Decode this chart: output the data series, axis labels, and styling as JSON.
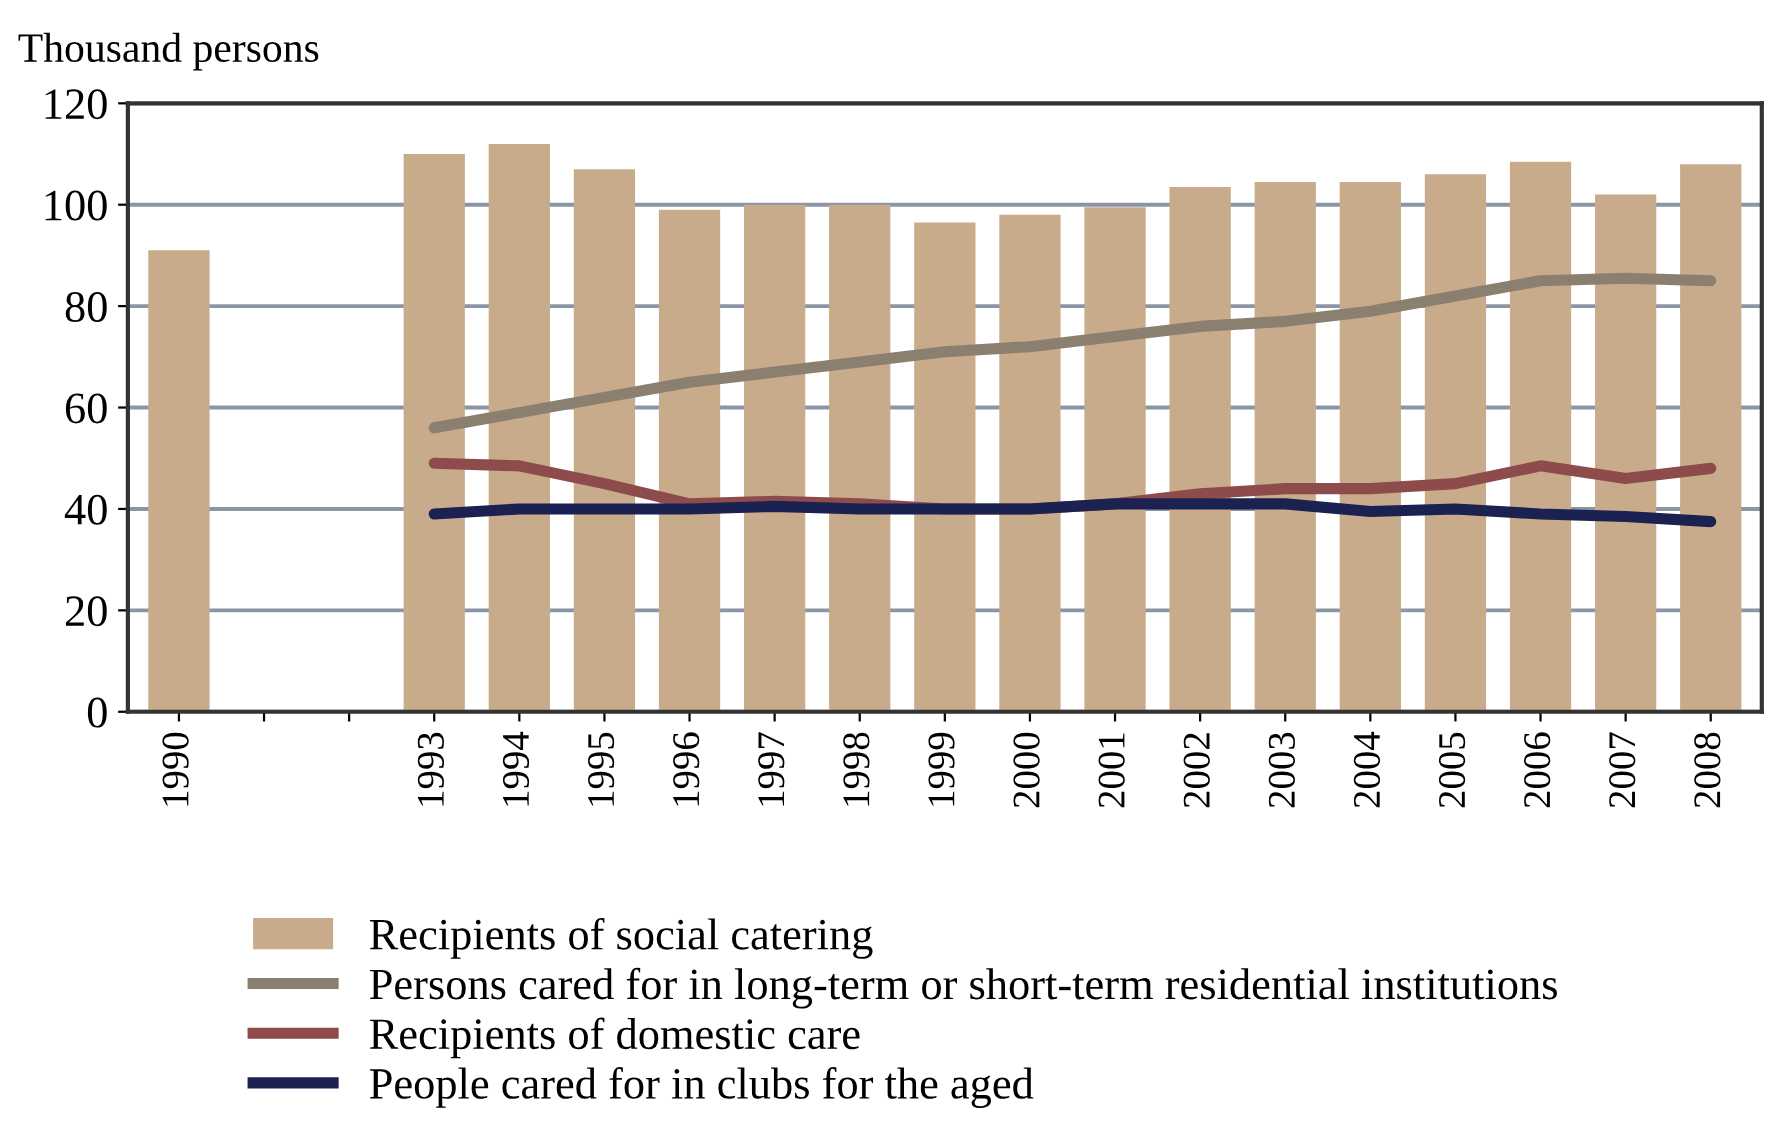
{
  "chart_data": {
    "type": "bar",
    "ylabel": "Thousand persons",
    "categories": [
      "1990",
      null,
      null,
      "1993",
      "1994",
      "1995",
      "1996",
      "1997",
      "1998",
      "1999",
      "2000",
      "2001",
      "2002",
      "2003",
      "2004",
      "2005",
      "2006",
      "2007",
      "2008"
    ],
    "series": [
      {
        "name": "Recipients of social catering",
        "color": "#c8ab8b",
        "values": [
          91,
          null,
          null,
          110,
          112,
          107,
          99,
          100,
          100,
          96.5,
          98,
          99.5,
          103.5,
          104.5,
          104.5,
          106,
          108.5,
          102,
          108
        ]
      },
      {
        "name": "Persons cared for in long-term or short-term residential institutions",
        "type": "line",
        "color": "#8b7f70",
        "values": [
          null,
          null,
          null,
          56,
          59,
          62,
          65,
          67,
          69,
          71,
          72,
          74,
          76,
          77,
          79,
          82,
          85,
          85.5,
          85
        ]
      },
      {
        "name": "Recipients of domestic care",
        "type": "line",
        "color": "#8e4b4b",
        "values": [
          null,
          null,
          null,
          49,
          48.5,
          45,
          41,
          41.5,
          41,
          40,
          40,
          41,
          43,
          44,
          44,
          45,
          48.5,
          46,
          48
        ]
      },
      {
        "name": "People cared for in clubs for the aged",
        "type": "line",
        "color": "#1b2150",
        "values": [
          null,
          null,
          null,
          39,
          40,
          40,
          40,
          40.5,
          40,
          40,
          40,
          41,
          41,
          41,
          39.5,
          40,
          39,
          38.5,
          37.5
        ]
      }
    ],
    "ylim": [
      0,
      120
    ],
    "yticks": [
      0,
      20,
      40,
      60,
      80,
      100,
      120
    ],
    "grid": "y",
    "legend": "bottom",
    "line_style": "solid",
    "marker": "none"
  }
}
